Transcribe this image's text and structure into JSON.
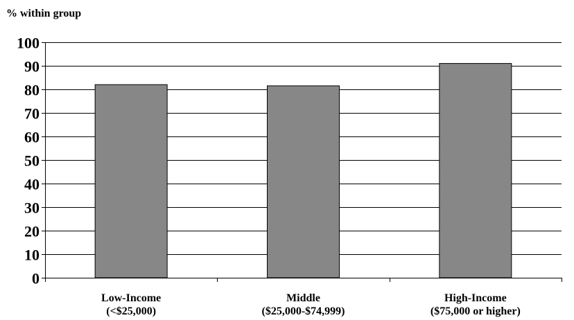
{
  "chart_data": {
    "type": "bar",
    "ylabel": "% within group",
    "categories": [
      [
        "Low-Income",
        "(<$25,000)"
      ],
      [
        "Middle",
        "($25,000-$74,999)"
      ],
      [
        "High-Income",
        "($75,000 or higher)"
      ]
    ],
    "values": [
      82,
      81.5,
      91
    ],
    "ylim": [
      0,
      100
    ],
    "yticks": [
      0,
      10,
      20,
      30,
      40,
      50,
      60,
      70,
      80,
      90,
      100
    ],
    "grid": true,
    "legend": "none",
    "bar_color": "#878787"
  }
}
